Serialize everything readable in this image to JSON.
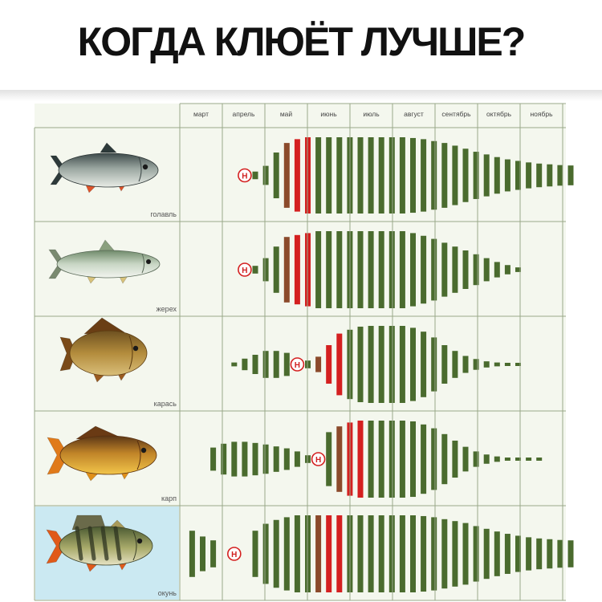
{
  "title": "КОГДА КЛЮЁТ ЛУЧШЕ?",
  "colors": {
    "background": "#ffffff",
    "grid": "#9aa889",
    "panel": "#f4f7ee",
    "good_bite": "#4a6b2e",
    "spawn_start": "#8b4a2b",
    "spawn_peak": "#d42020",
    "marker": "#d42020",
    "highlight_cell": "#cbe9f2"
  },
  "chart_data": {
    "type": "bar",
    "title": "КОГДА КЛЮЁТ ЛУЧШЕ?",
    "months": [
      "март",
      "апрель",
      "май",
      "июнь",
      "июль",
      "август",
      "сентябрь",
      "октябрь",
      "ноябрь"
    ],
    "bars_per_month": 4,
    "value_unit": "relative bite intensity, 0–1",
    "legend": {
      "marker_letter": "Н"
    },
    "fish": [
      {
        "name": "голавль",
        "icon": "chub-fish-icon",
        "highlighted": false,
        "marker_position": 4,
        "bars": [
          {
            "i": 5,
            "v": 0.1
          },
          {
            "i": 6,
            "v": 0.25
          },
          {
            "i": 7,
            "v": 0.6,
            "c": "g"
          },
          {
            "i": 8,
            "v": 0.85,
            "c": "b"
          },
          {
            "i": 9,
            "v": 0.95,
            "c": "r"
          },
          {
            "i": 10,
            "v": 1.0,
            "c": "r"
          },
          {
            "i": 11,
            "v": 1.0
          },
          {
            "i": 12,
            "v": 1.0
          },
          {
            "i": 13,
            "v": 1.0
          },
          {
            "i": 14,
            "v": 1.0
          },
          {
            "i": 15,
            "v": 1.0
          },
          {
            "i": 16,
            "v": 1.0
          },
          {
            "i": 17,
            "v": 1.0
          },
          {
            "i": 18,
            "v": 1.0
          },
          {
            "i": 19,
            "v": 1.0
          },
          {
            "i": 20,
            "v": 0.98
          },
          {
            "i": 21,
            "v": 0.95
          },
          {
            "i": 22,
            "v": 0.9
          },
          {
            "i": 23,
            "v": 0.85
          },
          {
            "i": 24,
            "v": 0.78
          },
          {
            "i": 25,
            "v": 0.7
          },
          {
            "i": 26,
            "v": 0.62
          },
          {
            "i": 27,
            "v": 0.55
          },
          {
            "i": 28,
            "v": 0.48
          },
          {
            "i": 29,
            "v": 0.42
          },
          {
            "i": 30,
            "v": 0.38
          },
          {
            "i": 31,
            "v": 0.34
          },
          {
            "i": 32,
            "v": 0.31
          },
          {
            "i": 33,
            "v": 0.29
          },
          {
            "i": 34,
            "v": 0.27
          },
          {
            "i": 35,
            "v": 0.26
          }
        ]
      },
      {
        "name": "жерех",
        "icon": "asp-fish-icon",
        "highlighted": false,
        "marker_position": 4,
        "bars": [
          {
            "i": 5,
            "v": 0.1
          },
          {
            "i": 6,
            "v": 0.3
          },
          {
            "i": 7,
            "v": 0.6,
            "c": "g"
          },
          {
            "i": 8,
            "v": 0.85,
            "c": "b"
          },
          {
            "i": 9,
            "v": 0.9,
            "c": "r"
          },
          {
            "i": 10,
            "v": 0.95,
            "c": "r"
          },
          {
            "i": 11,
            "v": 1.0
          },
          {
            "i": 12,
            "v": 1.0
          },
          {
            "i": 13,
            "v": 1.0
          },
          {
            "i": 14,
            "v": 1.0
          },
          {
            "i": 15,
            "v": 1.0
          },
          {
            "i": 16,
            "v": 1.0
          },
          {
            "i": 17,
            "v": 1.0
          },
          {
            "i": 18,
            "v": 1.0
          },
          {
            "i": 19,
            "v": 1.0
          },
          {
            "i": 20,
            "v": 0.95
          },
          {
            "i": 21,
            "v": 0.88
          },
          {
            "i": 22,
            "v": 0.8
          },
          {
            "i": 23,
            "v": 0.7
          },
          {
            "i": 24,
            "v": 0.6
          },
          {
            "i": 25,
            "v": 0.5
          },
          {
            "i": 26,
            "v": 0.4
          },
          {
            "i": 27,
            "v": 0.3
          },
          {
            "i": 28,
            "v": 0.2
          },
          {
            "i": 29,
            "v": 0.12
          },
          {
            "i": 30,
            "v": 0.06
          }
        ]
      },
      {
        "name": "карась",
        "icon": "crucian-carp-fish-icon",
        "highlighted": false,
        "marker_position": 9,
        "bars": [
          {
            "i": 3,
            "v": 0.05
          },
          {
            "i": 4,
            "v": 0.15
          },
          {
            "i": 5,
            "v": 0.25
          },
          {
            "i": 6,
            "v": 0.35
          },
          {
            "i": 7,
            "v": 0.35
          },
          {
            "i": 8,
            "v": 0.3
          },
          {
            "i": 10,
            "v": 0.1
          },
          {
            "i": 11,
            "v": 0.2,
            "c": "b"
          },
          {
            "i": 12,
            "v": 0.5,
            "c": "r"
          },
          {
            "i": 13,
            "v": 0.8,
            "c": "r"
          },
          {
            "i": 14,
            "v": 0.9
          },
          {
            "i": 15,
            "v": 0.98
          },
          {
            "i": 16,
            "v": 1.0
          },
          {
            "i": 17,
            "v": 1.0
          },
          {
            "i": 18,
            "v": 1.0
          },
          {
            "i": 19,
            "v": 1.0
          },
          {
            "i": 20,
            "v": 0.95
          },
          {
            "i": 21,
            "v": 0.85
          },
          {
            "i": 22,
            "v": 0.7
          },
          {
            "i": 23,
            "v": 0.5
          },
          {
            "i": 24,
            "v": 0.35
          },
          {
            "i": 25,
            "v": 0.22
          },
          {
            "i": 26,
            "v": 0.14
          },
          {
            "i": 27,
            "v": 0.08
          },
          {
            "i": 28,
            "v": 0.05
          },
          {
            "i": 29,
            "v": 0.03
          },
          {
            "i": 30,
            "v": 0.02
          }
        ]
      },
      {
        "name": "карп",
        "icon": "carp-fish-icon",
        "highlighted": false,
        "marker_position": 11,
        "bars": [
          {
            "i": 1,
            "v": 0.3
          },
          {
            "i": 2,
            "v": 0.4
          },
          {
            "i": 3,
            "v": 0.45
          },
          {
            "i": 4,
            "v": 0.45
          },
          {
            "i": 5,
            "v": 0.42
          },
          {
            "i": 6,
            "v": 0.38
          },
          {
            "i": 7,
            "v": 0.33
          },
          {
            "i": 8,
            "v": 0.28
          },
          {
            "i": 9,
            "v": 0.2
          },
          {
            "i": 10,
            "v": 0.1
          },
          {
            "i": 12,
            "v": 0.7,
            "c": "g"
          },
          {
            "i": 13,
            "v": 0.85,
            "c": "b"
          },
          {
            "i": 14,
            "v": 0.95,
            "c": "r"
          },
          {
            "i": 15,
            "v": 1.0,
            "c": "r"
          },
          {
            "i": 16,
            "v": 1.0
          },
          {
            "i": 17,
            "v": 1.0
          },
          {
            "i": 18,
            "v": 1.0
          },
          {
            "i": 19,
            "v": 1.0
          },
          {
            "i": 20,
            "v": 0.98
          },
          {
            "i": 21,
            "v": 0.9
          },
          {
            "i": 22,
            "v": 0.8
          },
          {
            "i": 23,
            "v": 0.65
          },
          {
            "i": 24,
            "v": 0.48
          },
          {
            "i": 25,
            "v": 0.32
          },
          {
            "i": 26,
            "v": 0.2
          },
          {
            "i": 27,
            "v": 0.12
          },
          {
            "i": 28,
            "v": 0.07
          },
          {
            "i": 29,
            "v": 0.04
          },
          {
            "i": 30,
            "v": 0.03
          },
          {
            "i": 31,
            "v": 0.02
          },
          {
            "i": 32,
            "v": 0.02
          }
        ]
      },
      {
        "name": "окунь",
        "icon": "perch-fish-icon",
        "highlighted": true,
        "marker_position": 3,
        "bars": [
          {
            "i": -1,
            "v": 0.6
          },
          {
            "i": 0,
            "v": 0.45
          },
          {
            "i": 1,
            "v": 0.35
          },
          {
            "i": 5,
            "v": 0.6
          },
          {
            "i": 6,
            "v": 0.78
          },
          {
            "i": 7,
            "v": 0.88
          },
          {
            "i": 8,
            "v": 0.95
          },
          {
            "i": 9,
            "v": 1.0
          },
          {
            "i": 10,
            "v": 1.0
          },
          {
            "i": 11,
            "v": 1.0,
            "c": "b"
          },
          {
            "i": 12,
            "v": 1.0,
            "c": "r"
          },
          {
            "i": 13,
            "v": 1.0,
            "c": "r"
          },
          {
            "i": 14,
            "v": 1.0
          },
          {
            "i": 15,
            "v": 1.0
          },
          {
            "i": 16,
            "v": 1.0
          },
          {
            "i": 17,
            "v": 1.0
          },
          {
            "i": 18,
            "v": 1.0
          },
          {
            "i": 19,
            "v": 1.0
          },
          {
            "i": 20,
            "v": 1.0
          },
          {
            "i": 21,
            "v": 0.98
          },
          {
            "i": 22,
            "v": 0.95
          },
          {
            "i": 23,
            "v": 0.9
          },
          {
            "i": 24,
            "v": 0.85
          },
          {
            "i": 25,
            "v": 0.8
          },
          {
            "i": 26,
            "v": 0.72
          },
          {
            "i": 27,
            "v": 0.65
          },
          {
            "i": 28,
            "v": 0.58
          },
          {
            "i": 29,
            "v": 0.52
          },
          {
            "i": 30,
            "v": 0.47
          },
          {
            "i": 31,
            "v": 0.43
          },
          {
            "i": 32,
            "v": 0.4
          },
          {
            "i": 33,
            "v": 0.38
          },
          {
            "i": 34,
            "v": 0.36
          },
          {
            "i": 35,
            "v": 0.35
          }
        ]
      }
    ]
  }
}
